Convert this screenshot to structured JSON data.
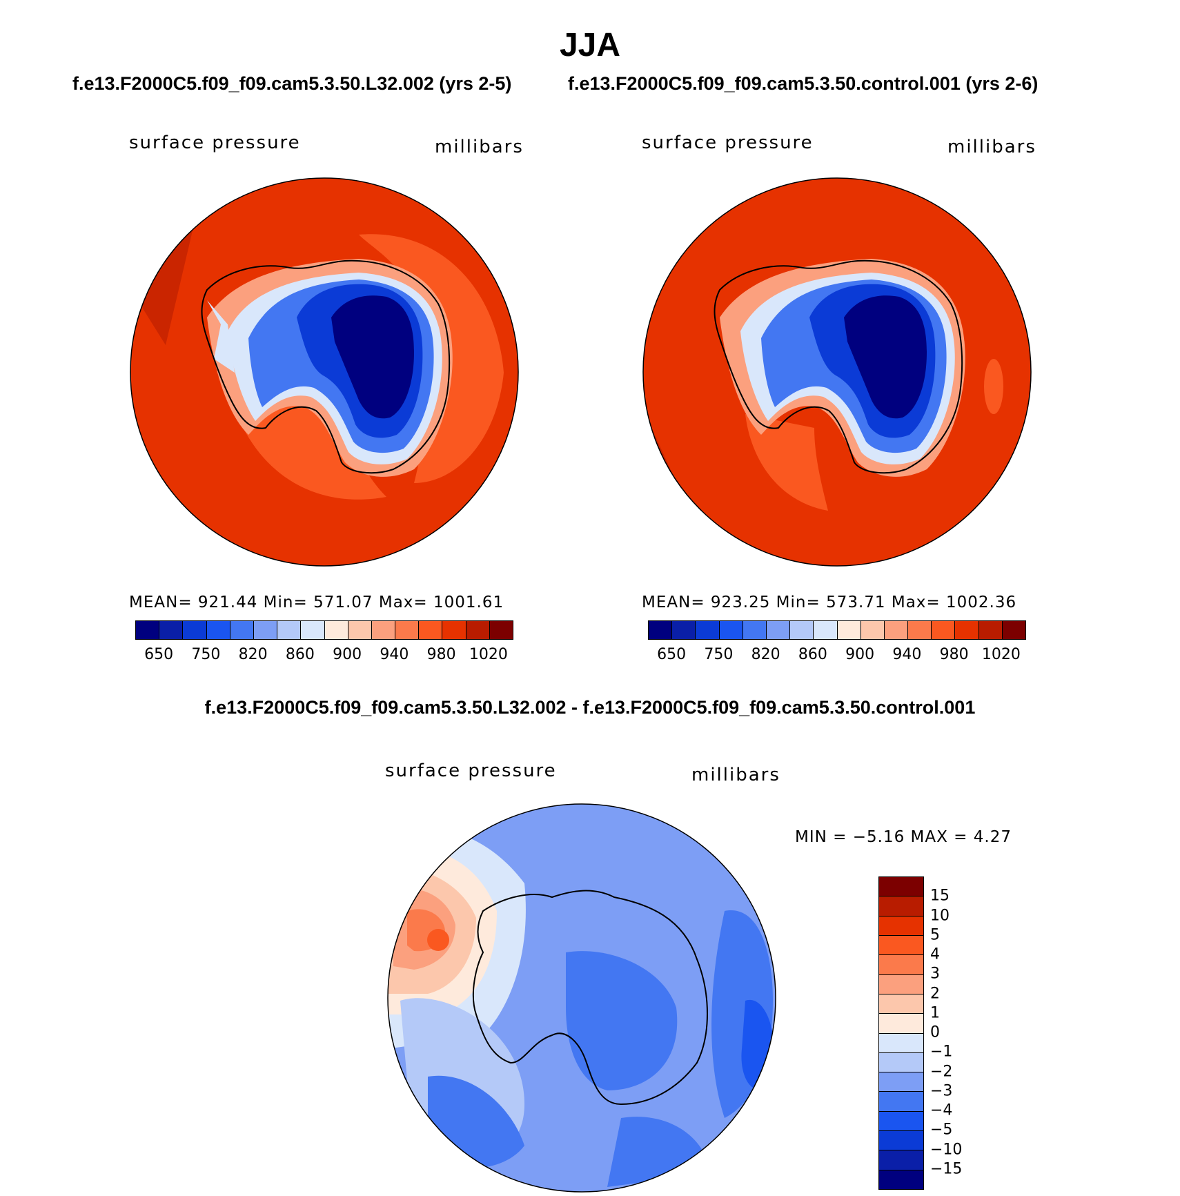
{
  "figure": {
    "season": "JJA",
    "left_case": "f.e13.F2000C5.f09_f09.cam5.3.50.L32.002 (yrs 2-5)",
    "right_case": "f.e13.F2000C5.f09_f09.cam5.3.50.control.001 (yrs 2-6)",
    "diff_title": "f.e13.F2000C5.f09_f09.cam5.3.50.L32.002 - f.e13.F2000C5.f09_f09.cam5.3.50.control.001"
  },
  "panels": {
    "left": {
      "variable": "surface pressure",
      "units": "millibars",
      "stats": "MEAN= 921.44   Min= 571.07   Max= 1001.61"
    },
    "right": {
      "variable": "surface pressure",
      "units": "millibars",
      "stats": "MEAN= 923.25   Min= 573.71   Max= 1002.36"
    },
    "diff": {
      "variable": "surface pressure",
      "units": "millibars",
      "stats": "MIN =   −5.16 MAX =    4.27"
    }
  },
  "colors": {
    "abs_scale": [
      "#00007f",
      "#0a1fa8",
      "#0b3bd6",
      "#1a55f0",
      "#4377f2",
      "#7d9ef5",
      "#b4c9f8",
      "#d9e7fb",
      "#feeadc",
      "#fcc7ac",
      "#fba07e",
      "#fb7a4b",
      "#fa5820",
      "#e63200",
      "#b81c00",
      "#7c0000"
    ],
    "diff_scale": [
      "#7c0000",
      "#b81c00",
      "#e63200",
      "#fa5820",
      "#fb7a4b",
      "#fba07e",
      "#fcc7ac",
      "#feeadc",
      "#d9e7fb",
      "#b4c9f8",
      "#7d9ef5",
      "#4377f2",
      "#1a55f0",
      "#0b3bd6",
      "#0a1fa8",
      "#00007f"
    ]
  },
  "abs_colorbar": {
    "ticks": [
      "650",
      "750",
      "820",
      "860",
      "900",
      "940",
      "980",
      "1020"
    ]
  },
  "diff_colorbar": {
    "ticks": [
      "15",
      "10",
      "5",
      "4",
      "3",
      "2",
      "1",
      "0",
      "−1",
      "−2",
      "−3",
      "−4",
      "−5",
      "−10",
      "−15"
    ]
  }
}
